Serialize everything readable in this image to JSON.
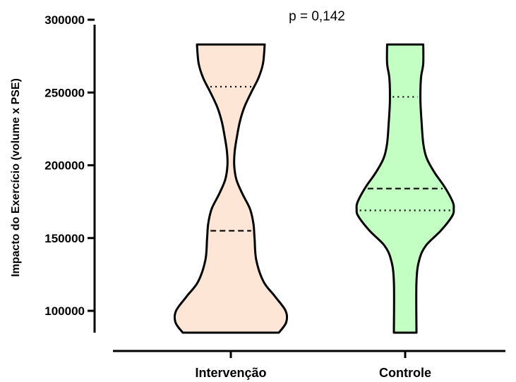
{
  "chart_data": {
    "type": "violin",
    "ylabel": "Impacto do Exercício (volume x PSE)",
    "annotation": "p = 0,142",
    "ylim": [
      85000,
      300000
    ],
    "yticks": [
      {
        "value": 100000,
        "label": "100000"
      },
      {
        "value": 150000,
        "label": "150000"
      },
      {
        "value": 200000,
        "label": "200000"
      },
      {
        "value": 250000,
        "label": "250000"
      },
      {
        "value": 300000,
        "label": "300000"
      }
    ],
    "categories": [
      "Intervenção",
      "Controle"
    ],
    "series": [
      {
        "category": "Intervenção",
        "color": "#fde6d6",
        "min": 85000,
        "max": 283000,
        "q1": 155000,
        "median": 155000,
        "q3": 254000,
        "density": [
          [
            85000,
            0.85
          ],
          [
            92000,
            0.98
          ],
          [
            100000,
            0.97
          ],
          [
            110000,
            0.78
          ],
          [
            120000,
            0.58
          ],
          [
            135000,
            0.45
          ],
          [
            150000,
            0.42
          ],
          [
            160000,
            0.4
          ],
          [
            170000,
            0.34
          ],
          [
            180000,
            0.21
          ],
          [
            190000,
            0.1
          ],
          [
            200000,
            0.06
          ],
          [
            210000,
            0.07
          ],
          [
            220000,
            0.11
          ],
          [
            230000,
            0.16
          ],
          [
            240000,
            0.24
          ],
          [
            250000,
            0.36
          ],
          [
            260000,
            0.49
          ],
          [
            270000,
            0.57
          ],
          [
            283000,
            0.6
          ]
        ]
      },
      {
        "category": "Controle",
        "color": "#c3ffc3",
        "min": 85000,
        "max": 283000,
        "q1": 169000,
        "median": 184000,
        "q3": 247000,
        "density": [
          [
            85000,
            0.2
          ],
          [
            120000,
            0.2
          ],
          [
            135000,
            0.25
          ],
          [
            145000,
            0.37
          ],
          [
            155000,
            0.63
          ],
          [
            165000,
            0.83
          ],
          [
            170000,
            0.86
          ],
          [
            175000,
            0.84
          ],
          [
            185000,
            0.7
          ],
          [
            195000,
            0.52
          ],
          [
            205000,
            0.38
          ],
          [
            215000,
            0.32
          ],
          [
            230000,
            0.29
          ],
          [
            245000,
            0.27
          ],
          [
            260000,
            0.28
          ],
          [
            270000,
            0.32
          ],
          [
            283000,
            0.32
          ]
        ]
      }
    ]
  }
}
